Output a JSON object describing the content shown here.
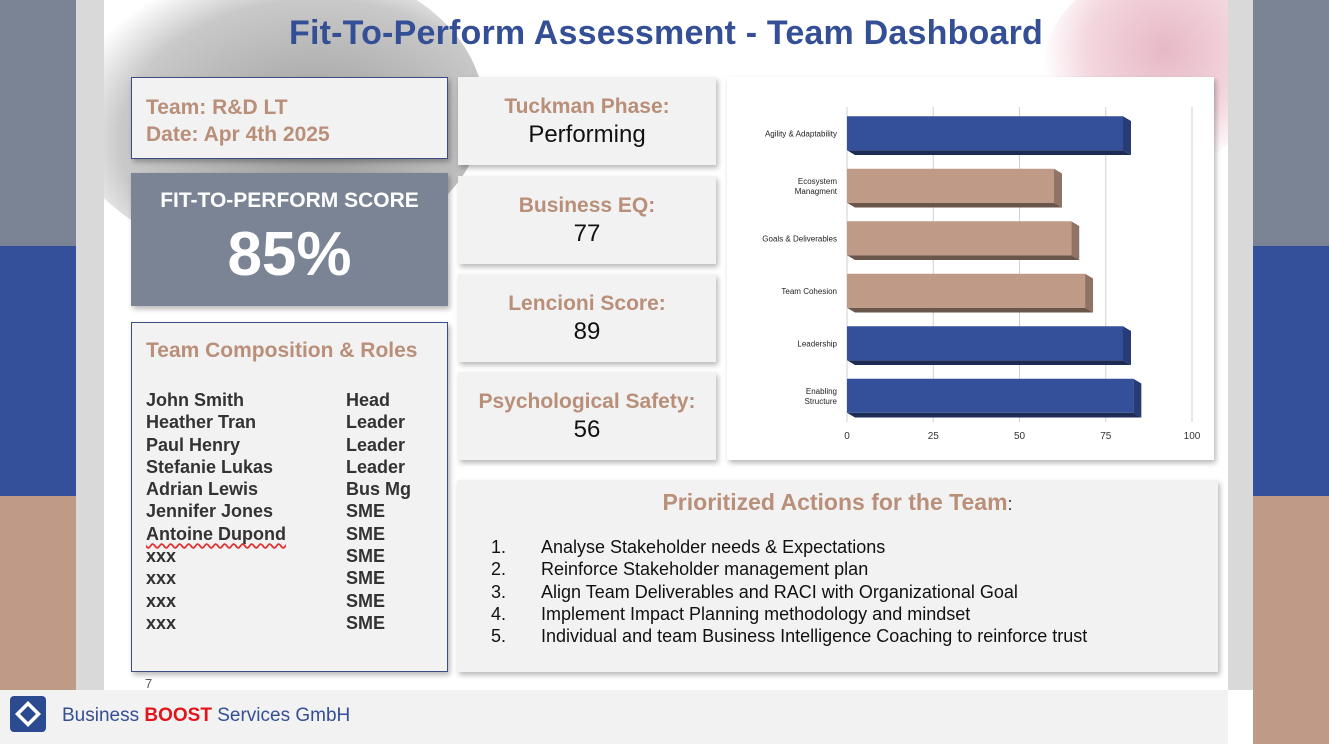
{
  "title": "Fit-To-Perform Assessment - Team Dashboard",
  "team": {
    "team_line": "Team: R&D LT",
    "date_line": "Date: Apr 4th 2025"
  },
  "score": {
    "label": "FIT-TO-PERFORM SCORE",
    "value": "85%"
  },
  "composition": {
    "title": "Team Composition & Roles",
    "members": [
      {
        "name": "John Smith",
        "role": "Head"
      },
      {
        "name": "Heather Tran",
        "role": "Leader"
      },
      {
        "name": "Paul Henry",
        "role": "Leader"
      },
      {
        "name": "Stefanie Lukas",
        "role": "Leader"
      },
      {
        "name": "Adrian Lewis",
        "role": "Bus Mg"
      },
      {
        "name": "Jennifer Jones",
        "role": "SME"
      },
      {
        "name": "Antoine Dupond",
        "role": "SME"
      },
      {
        "name": "xxx",
        "role": "SME"
      },
      {
        "name": "xxx",
        "role": "SME"
      },
      {
        "name": "xxx",
        "role": "SME"
      },
      {
        "name": "xxx",
        "role": "SME"
      }
    ]
  },
  "metrics": [
    {
      "label": "Tuckman Phase:",
      "value": "Performing"
    },
    {
      "label": "Business EQ:",
      "value": "77"
    },
    {
      "label": "Lencioni Score:",
      "value": "89"
    },
    {
      "label": "Psychological Safety:",
      "value": "56"
    }
  ],
  "actions": {
    "title": "Prioritized Actions for the Team",
    "title_suffix": ":",
    "items": [
      {
        "num": "1.",
        "text": "Analyse Stakeholder needs & Expectations"
      },
      {
        "num": "2.",
        "text": "Reinforce Stakeholder management plan"
      },
      {
        "num": "3.",
        "text": "Align Team Deliverables and RACI with Organizational Goal"
      },
      {
        "num": "4.",
        "text": "Implement Impact Planning methodology and mindset"
      },
      {
        "num": "5.",
        "text": "Individual and team Business Intelligence Coaching to reinforce trust"
      }
    ]
  },
  "footer": {
    "company_pre": "Business ",
    "company_boost": "BOOST",
    "company_post": " Services GmbH",
    "stray_mark": "7"
  },
  "colors": {
    "navy": "#344f95",
    "tan": "#b98f79",
    "slate": "#7b8494",
    "bar_blue": "#34509a",
    "bar_tan": "#bf9a86"
  },
  "chart_data": {
    "type": "bar",
    "orientation": "horizontal",
    "categories": [
      "Agility & Adaptability",
      "Ecosystem Managment",
      "Goals & Deliverables",
      "Team Cohesion",
      "Leadership",
      "Enabling Structure"
    ],
    "values": [
      80,
      60,
      65,
      69,
      80,
      83
    ],
    "bar_colors": [
      "#34509a",
      "#bf9a86",
      "#bf9a86",
      "#bf9a86",
      "#34509a",
      "#34509a"
    ],
    "xlim": [
      0,
      100
    ],
    "xticks": [
      "0",
      "25",
      "50",
      "75",
      "100"
    ],
    "grid": true,
    "title": "",
    "xlabel": "",
    "ylabel": ""
  }
}
